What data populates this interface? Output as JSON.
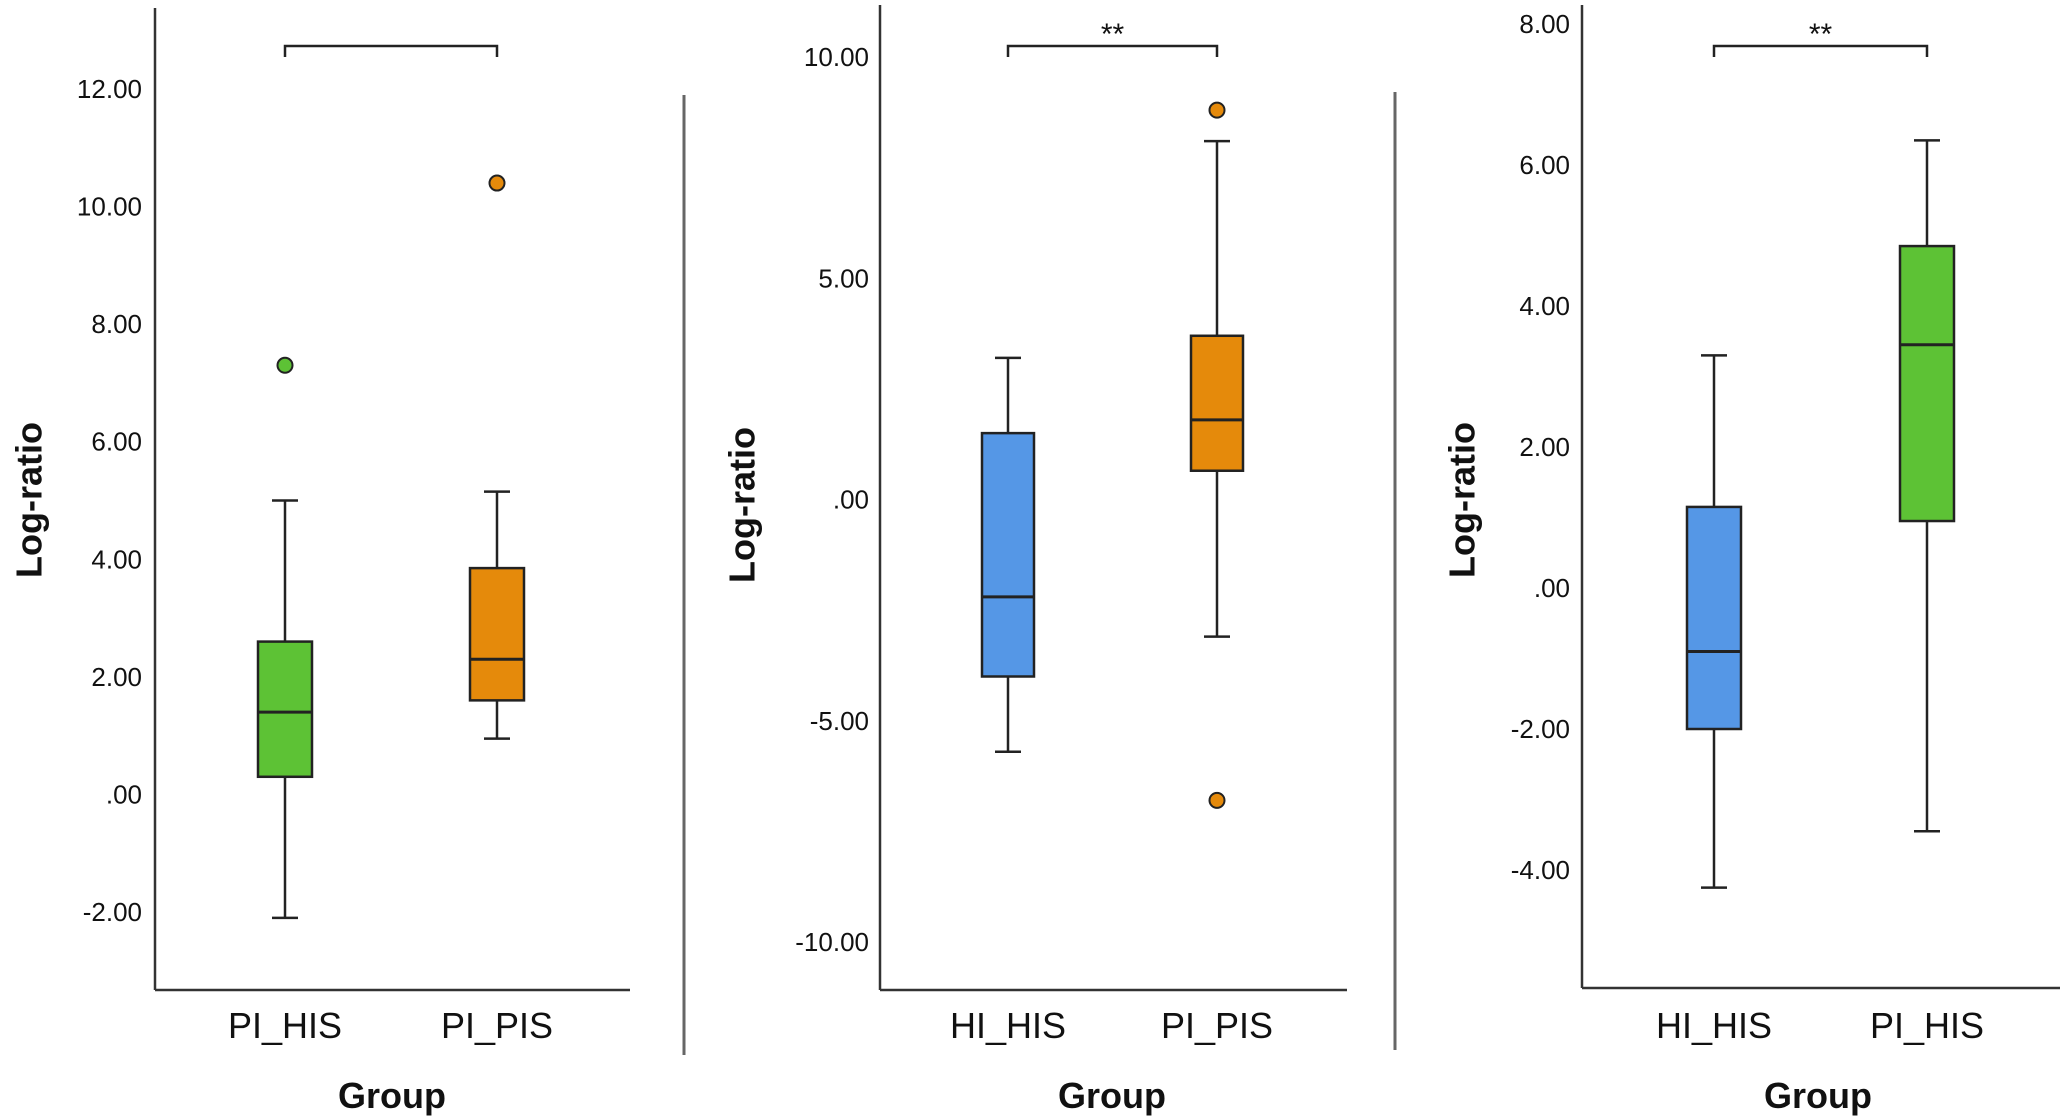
{
  "colors": {
    "HI_HIS": "#5597e6",
    "PI_HIS": "#5dc235",
    "PI_PIS": "#e58a0b"
  },
  "chart_data": [
    {
      "type": "box",
      "xlabel": "Group",
      "ylabel": "Log-ratio",
      "ylim": [
        -3.3,
        13.3
      ],
      "yticks": [
        -2,
        0,
        2,
        4,
        6,
        8,
        10,
        12
      ],
      "ytick_labels": [
        "-2.00",
        ".00",
        "2.00",
        "4.00",
        "6.00",
        "8.00",
        "10.00",
        "12.00"
      ],
      "significance": "",
      "groups": [
        {
          "name": "PI_HIS",
          "color_key": "PI_HIS",
          "whisker_low": -2.1,
          "q1": 0.3,
          "median": 1.4,
          "q3": 2.6,
          "whisker_high": 5.0,
          "outliers": [
            7.3
          ]
        },
        {
          "name": "PI_PIS",
          "color_key": "PI_PIS",
          "whisker_low": 0.95,
          "q1": 1.6,
          "median": 2.3,
          "q3": 3.85,
          "whisker_high": 5.15,
          "outliers": [
            10.4
          ]
        }
      ]
    },
    {
      "type": "box",
      "xlabel": "Group",
      "ylabel": "Log-ratio",
      "ylim": [
        -11.0,
        11.1
      ],
      "yticks": [
        -10,
        -5,
        0,
        5,
        10
      ],
      "ytick_labels": [
        "-10.00",
        "-5.00",
        ".00",
        "5.00",
        "10.00"
      ],
      "significance": "**",
      "groups": [
        {
          "name": "HI_HIS",
          "color_key": "HI_HIS",
          "whisker_low": -5.7,
          "q1": -4.0,
          "median": -2.2,
          "q3": 1.5,
          "whisker_high": 3.2,
          "outliers": []
        },
        {
          "name": "PI_PIS",
          "color_key": "PI_PIS",
          "whisker_low": -3.1,
          "q1": 0.65,
          "median": 1.8,
          "q3": 3.7,
          "whisker_high": 8.1,
          "outliers": [
            8.8,
            -6.8
          ]
        }
      ]
    },
    {
      "type": "box",
      "xlabel": "Group",
      "ylabel": "Log-ratio",
      "ylim": [
        -5.6,
        8.25
      ],
      "yticks": [
        -4,
        -2,
        0,
        2,
        4,
        6,
        8
      ],
      "ytick_labels": [
        "-4.00",
        "-2.00",
        ".00",
        "2.00",
        "4.00",
        "6.00",
        "8.00"
      ],
      "significance": "**",
      "groups": [
        {
          "name": "HI_HIS",
          "color_key": "HI_HIS",
          "whisker_low": -4.25,
          "q1": -2.0,
          "median": -0.9,
          "q3": 1.15,
          "whisker_high": 3.3,
          "outliers": []
        },
        {
          "name": "PI_HIS",
          "color_key": "PI_HIS",
          "whisker_low": -3.45,
          "q1": 0.95,
          "median": 3.45,
          "q3": 4.85,
          "whisker_high": 6.35,
          "outliers": []
        }
      ]
    }
  ]
}
